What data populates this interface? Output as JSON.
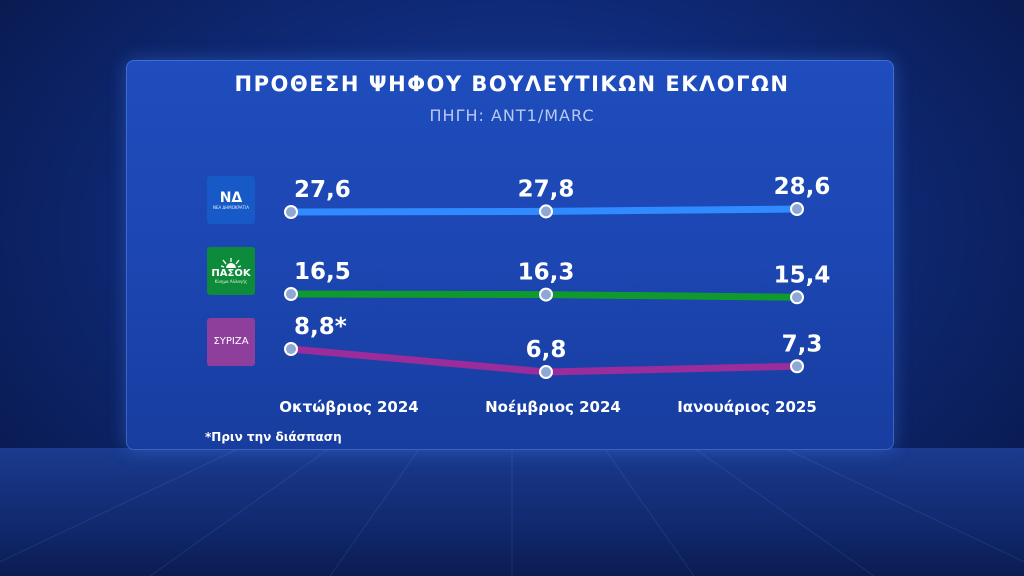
{
  "title": "ΠΡΟΘΕΣΗ ΨΗΦΟΥ ΒΟΥΛΕΥΤΙΚΩΝ ΕΚΛΟΓΩΝ",
  "subtitle": "ΠΗΓΗ: ANT1/MARC",
  "footnote": "*Πριν την διάσπαση",
  "logos": {
    "nd": {
      "big": "ΝΔ",
      "small": "ΝΕΑ ΔΗΜΟΚΡΑΤΙΑ"
    },
    "pasok": {
      "big": "ΠΑΣΟΚ",
      "small": "Κίνημα Αλλαγής"
    },
    "syriza": {
      "big": "ΣΥΡΙΖΑ",
      "small": ""
    }
  },
  "chart_data": {
    "type": "line",
    "categories": [
      "Οκτώβριος  2024",
      "Νοέμβριος  2024",
      "Ιανουάριος  2025"
    ],
    "series": [
      {
        "name": "ΝΔ",
        "values": [
          27.6,
          27.8,
          28.6
        ],
        "labels": [
          "27,6",
          "27,8",
          "28,6"
        ],
        "color": "#2f8bff",
        "logo": "nd"
      },
      {
        "name": "ΠΑΣΟΚ",
        "values": [
          16.5,
          16.3,
          15.4
        ],
        "labels": [
          "16,5",
          "16,3",
          "15,4"
        ],
        "color": "#0e9a2c",
        "logo": "pasok"
      },
      {
        "name": "ΣΥΡΙΖΑ",
        "values": [
          8.8,
          6.8,
          7.3
        ],
        "labels": [
          "8,8*",
          "6,8",
          "7,3"
        ],
        "color": "#9a2c9c",
        "logo": "syriza"
      }
    ],
    "xlabel": "",
    "ylabel": "",
    "grid": false,
    "legend": "logos-left"
  }
}
